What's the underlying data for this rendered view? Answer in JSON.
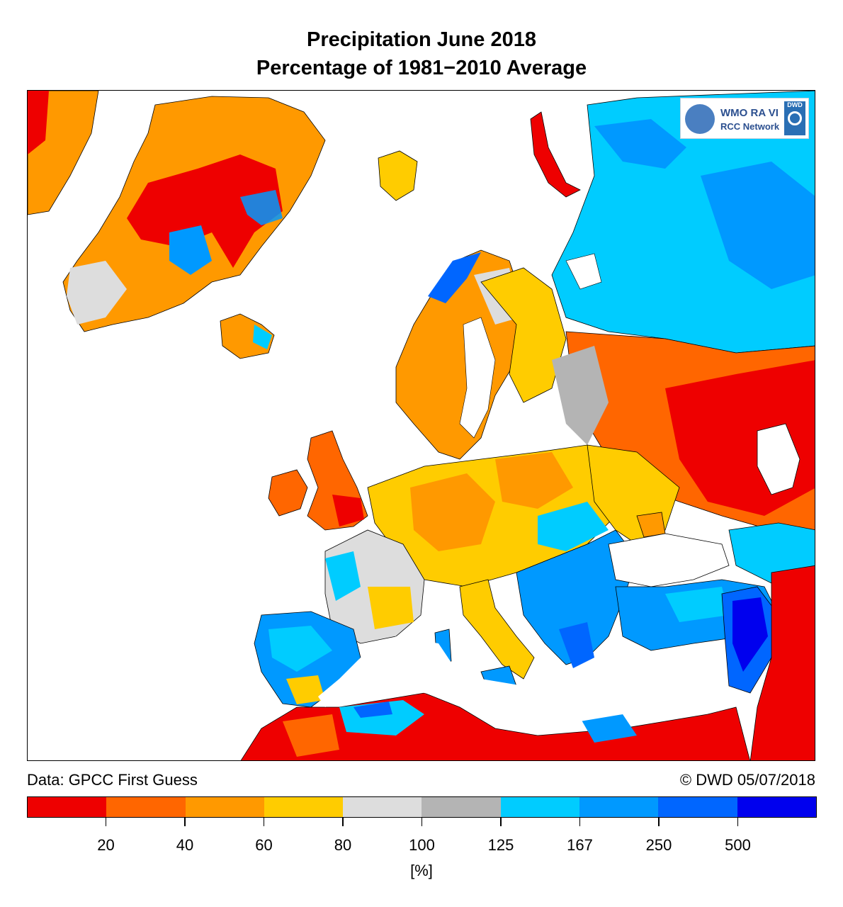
{
  "title": {
    "line1": "Precipitation June 2018",
    "line2": "Percentage of 1981−2010 Average"
  },
  "logo": {
    "text1": "WMO RA VI",
    "text2": "RCC Network",
    "badge": "DWD"
  },
  "footer": {
    "source": "Data: GPCC First Guess",
    "copyright": "© DWD 05/07/2018"
  },
  "legend": {
    "unit": "[%]",
    "colors": [
      "#ee0000",
      "#ff6600",
      "#ff9900",
      "#ffcc00",
      "#dddddd",
      "#b4b4b4",
      "#00ccff",
      "#0099ff",
      "#0066ff",
      "#0000ee"
    ],
    "ticks": [
      "20",
      "40",
      "60",
      "80",
      "100",
      "125",
      "167",
      "250",
      "500"
    ]
  },
  "regions": {
    "greenland": "dry (20-60%)",
    "western_europe": "dry",
    "balkans": "wet",
    "russia_east": "dry",
    "russia_north": "wet"
  }
}
